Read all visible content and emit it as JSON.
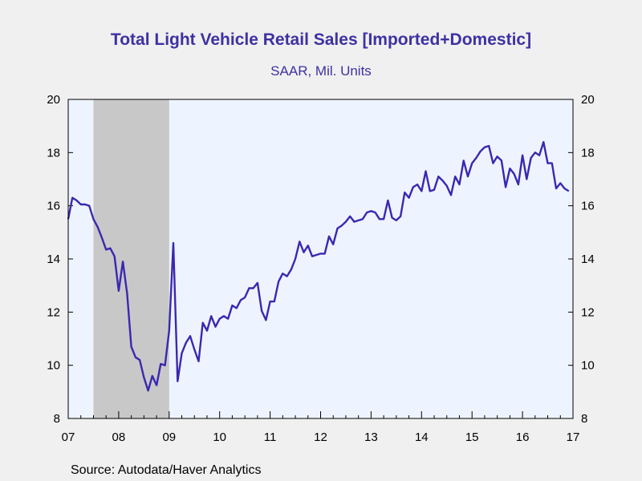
{
  "chart_data": {
    "type": "line",
    "title": "Total Light Vehicle Retail Sales [Imported+Domestic]",
    "subtitle": "SAAR, Mil. Units",
    "source": "Source:  Autodata/Haver Analytics",
    "xlabel": "",
    "ylabel": "",
    "x_tick_labels": [
      "07",
      "08",
      "09",
      "10",
      "11",
      "12",
      "13",
      "14",
      "15",
      "16",
      "17"
    ],
    "x_range": [
      2007.0,
      2017.0
    ],
    "ylim": [
      8,
      20
    ],
    "y_ticks": [
      8,
      10,
      12,
      14,
      16,
      18,
      20
    ],
    "y_axis_sides": "left and right",
    "grid": false,
    "legend": "none",
    "recession_shading": {
      "start": 2007.5,
      "end": 2009.0,
      "color": "#c8c8c8"
    },
    "colors": {
      "line": "#3a28b0",
      "plot_background": "#eef4ff",
      "page_background": "#f0f0f0",
      "title": "#3e31a3"
    },
    "series": [
      {
        "start": 2007.0,
        "step": 0.0833333,
        "values": [
          15.5,
          16.3,
          16.2,
          16.05,
          16.05,
          16.0,
          15.5,
          15.2,
          14.8,
          14.35,
          14.4,
          14.1,
          12.8,
          13.9,
          12.7,
          10.7,
          10.3,
          10.2,
          9.55,
          9.05,
          9.6,
          9.25,
          10.05,
          10.0,
          11.3,
          14.6,
          9.4,
          10.45,
          10.85,
          11.1,
          10.6,
          10.15,
          11.6,
          11.3,
          11.85,
          11.45,
          11.75,
          11.85,
          11.75,
          12.25,
          12.15,
          12.45,
          12.55,
          12.9,
          12.9,
          13.1,
          12.05,
          11.7,
          12.4,
          12.4,
          13.15,
          13.45,
          13.35,
          13.6,
          14.0,
          14.65,
          14.25,
          14.5,
          14.1,
          14.15,
          14.2,
          14.2,
          14.85,
          14.55,
          15.15,
          15.25,
          15.4,
          15.6,
          15.4,
          15.45,
          15.5,
          15.75,
          15.8,
          15.75,
          15.5,
          15.5,
          16.2,
          15.55,
          15.45,
          15.6,
          16.5,
          16.3,
          16.7,
          16.8,
          16.55,
          17.3,
          16.55,
          16.6,
          17.1,
          16.95,
          16.75,
          16.4,
          17.1,
          16.8,
          17.7,
          17.1,
          17.6,
          17.8,
          18.05,
          18.2,
          18.25,
          17.6,
          17.85,
          17.7,
          16.7,
          17.4,
          17.2,
          16.8,
          17.9,
          17.0,
          17.8,
          18.0,
          17.9,
          18.4,
          17.6,
          17.6,
          16.65,
          16.85,
          16.65,
          16.55
        ]
      }
    ]
  }
}
